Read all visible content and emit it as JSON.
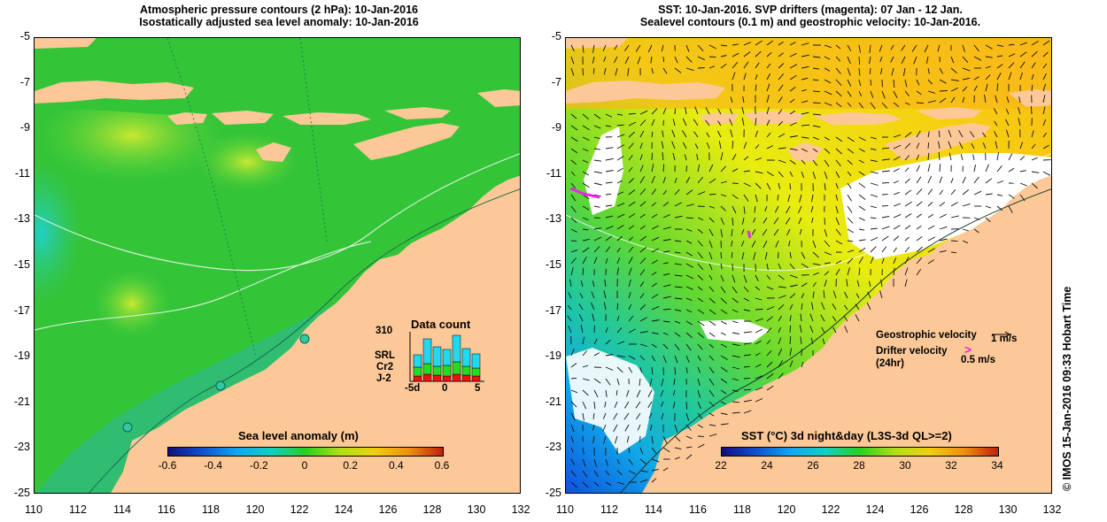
{
  "left_panel": {
    "title_line1": "Atmospheric pressure contours (2 hPa): 10-Jan-2016",
    "title_line2": "Isostatically adjusted sea level anomaly: 10-Jan-2016",
    "colorbar_title": "Sea level anomaly (m)",
    "colorbar_ticks": [
      "-0.6",
      "-0.4",
      "-0.2",
      "0",
      "0.2",
      "0.4",
      "0.6"
    ],
    "colorbar_range": [
      -0.6,
      0.6
    ],
    "data_count": {
      "title": "Data count",
      "y_max_label": "310",
      "x_labels": [
        "-5d",
        "0",
        "5"
      ],
      "satellites": [
        {
          "name": "SRL",
          "color": "#22d8f0"
        },
        {
          "name": "Cr2",
          "color": "#22dd22"
        },
        {
          "name": "J-2",
          "color": "#ee1111"
        }
      ]
    }
  },
  "right_panel": {
    "title_line1": "SST: 10-Jan-2016. SVP drifters (magenta): 07 Jan - 12 Jan.",
    "title_line2": "Sealevel contours (0.1 m) and geostrophic velocity: 10-Jan-2016.",
    "colorbar_title": "SST (°C) 3d night&day (L3S-3d QL>=2)",
    "colorbar_ticks": [
      "22",
      "24",
      "26",
      "28",
      "30",
      "32",
      "34"
    ],
    "colorbar_range": [
      22,
      34
    ],
    "legend": {
      "geostrophic_label": "Geostrophic velocity",
      "geostrophic_scale": "1 m/s",
      "drifter_label": "Drifter velocity",
      "drifter_sub": "(24hr)",
      "drifter_scale": "0.5 m/s"
    }
  },
  "axes": {
    "x_ticks": [
      "110",
      "112",
      "114",
      "116",
      "118",
      "120",
      "122",
      "124",
      "126",
      "128",
      "130",
      "132"
    ],
    "y_ticks": [
      "-5",
      "-7",
      "-9",
      "-11",
      "-13",
      "-15",
      "-17",
      "-19",
      "-21",
      "-23",
      "-25"
    ],
    "lon_range": [
      110,
      132
    ],
    "lat_range": [
      -25,
      -5
    ]
  },
  "credit": "© IMOS 15-Jan-2016 09:33 Hobart Time",
  "colors": {
    "land": "#fcc898",
    "ocean_green": "#34c834",
    "ocean_light": "#48d848",
    "shelf_cyan": "#30c8b0",
    "sst_yellow": "#f2ee10",
    "sst_orange": "#fab818",
    "cloud_white": "#ffffff",
    "drifter": "#ee22ee"
  }
}
